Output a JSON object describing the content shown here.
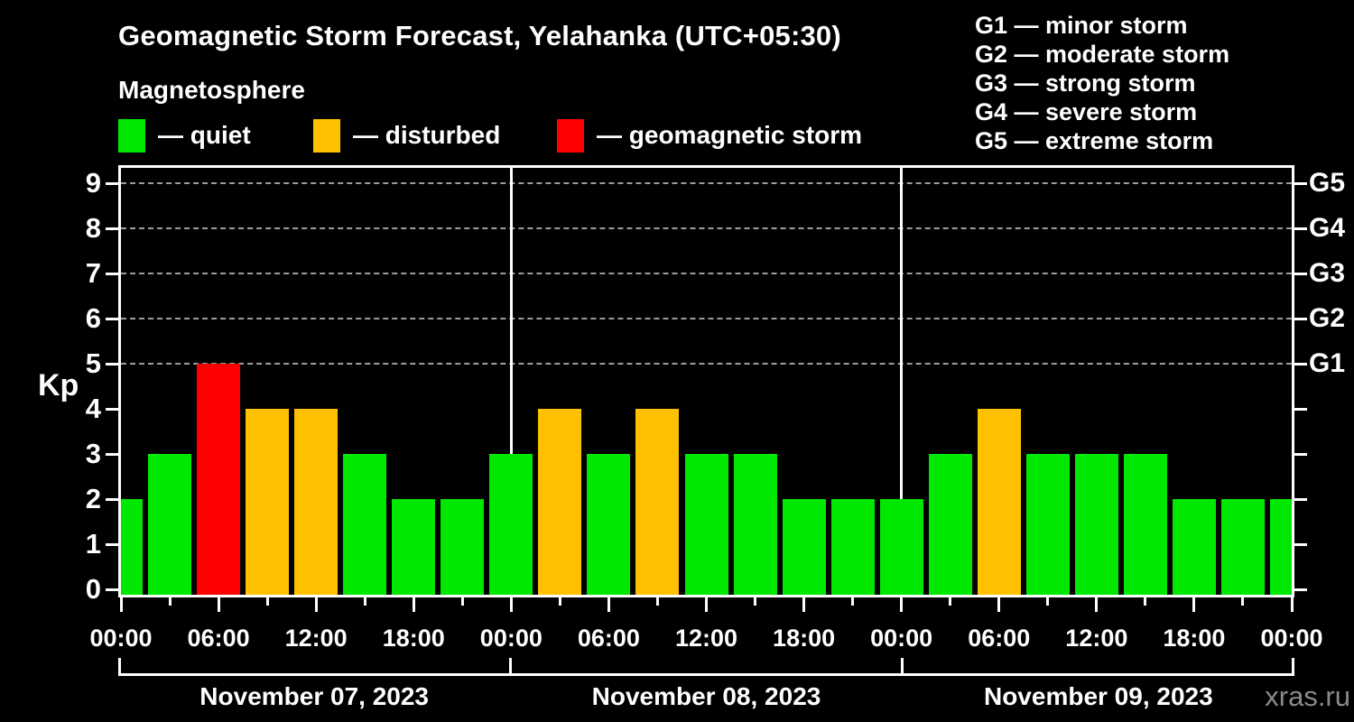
{
  "header": {
    "subtitle": "Magnetosphere"
  },
  "legend": {
    "separator": "—",
    "items": [
      {
        "label": "quiet",
        "color": "#00e800"
      },
      {
        "label": "disturbed",
        "color": "#ffc000"
      },
      {
        "label": "geomagnetic storm",
        "color": "#ff0000"
      }
    ]
  },
  "g_scale_legend": {
    "separator": "—",
    "items": [
      {
        "code": "G1",
        "label": "minor storm"
      },
      {
        "code": "G2",
        "label": "moderate storm"
      },
      {
        "code": "G3",
        "label": "strong storm"
      },
      {
        "code": "G4",
        "label": "severe storm"
      },
      {
        "code": "G5",
        "label": "extreme storm"
      }
    ]
  },
  "chart_data": {
    "type": "bar",
    "title": "Geomagnetic Storm Forecast, Yelahanka (UTC+05:30)",
    "ylabel": "Kp",
    "ylim": [
      0,
      9.5
    ],
    "y_ticks": [
      0,
      1,
      2,
      3,
      4,
      5,
      6,
      7,
      8,
      9
    ],
    "gridline_kp": [
      5,
      6,
      7,
      8,
      9
    ],
    "right_axis_labels": [
      {
        "kp": 5,
        "g": "G1"
      },
      {
        "kp": 6,
        "g": "G2"
      },
      {
        "kp": 7,
        "g": "G3"
      },
      {
        "kp": 8,
        "g": "G4"
      },
      {
        "kp": 9,
        "g": "G5"
      }
    ],
    "x_tick_labels": [
      "00:00",
      "06:00",
      "12:00",
      "18:00",
      "00:00",
      "06:00",
      "12:00",
      "18:00",
      "00:00",
      "06:00",
      "12:00",
      "18:00",
      "00:00"
    ],
    "days": [
      {
        "date": "November 07, 2023",
        "kp_3h": [
          2,
          3,
          5,
          4,
          4,
          3,
          2,
          2
        ]
      },
      {
        "date": "November 08, 2023",
        "kp_3h": [
          3,
          4,
          3,
          4,
          3,
          3,
          2,
          2
        ]
      },
      {
        "date": "November 09, 2023",
        "kp_3h": [
          2,
          3,
          4,
          3,
          3,
          3,
          2,
          2
        ]
      }
    ],
    "trailing_kp": 2,
    "color_rule": {
      "quiet_max": 3,
      "disturbed_value": 4,
      "storm_min": 5
    }
  },
  "watermark": "xras.ru"
}
